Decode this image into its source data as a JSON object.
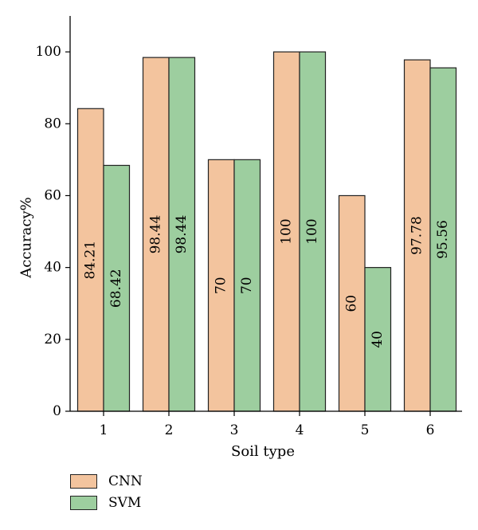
{
  "chart_data": {
    "type": "bar",
    "title": "",
    "xlabel": "Soil type",
    "ylabel": "Accuracy%",
    "categories": [
      "1",
      "2",
      "3",
      "4",
      "5",
      "6"
    ],
    "series": [
      {
        "name": "CNN",
        "color": "#f3c49e",
        "values": [
          84.21,
          98.44,
          70,
          100,
          60,
          97.78
        ],
        "labels": [
          "84.21",
          "98.44",
          "70",
          "100",
          "60",
          "97.78"
        ]
      },
      {
        "name": "SVM",
        "color": "#9dce9f",
        "values": [
          68.42,
          98.44,
          70,
          100,
          40,
          95.56
        ],
        "labels": [
          "68.42",
          "98.44",
          "70",
          "100",
          "40",
          "95.56"
        ]
      }
    ],
    "ylim": [
      0,
      100
    ],
    "yticks": [
      "0",
      "20",
      "40",
      "60",
      "80",
      "100"
    ],
    "grid": false,
    "legend_position": "bottom-left"
  }
}
